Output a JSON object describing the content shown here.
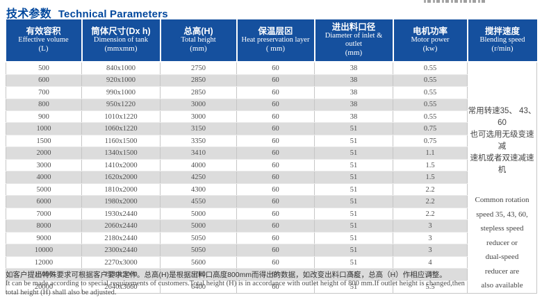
{
  "page": {
    "title_zh": "技术参数",
    "title_en": "Technical Parameters"
  },
  "colors": {
    "header_bg": "#15509e",
    "title_text": "#00479d",
    "row_stripe": "#dcdcdc",
    "body_text": "#4d4d4d"
  },
  "table": {
    "columns": [
      {
        "zh": "有效容积",
        "en": "Effective volume",
        "unit": "(L)"
      },
      {
        "zh": "筒体尺寸(Dx h)",
        "en": "Dimension of tank",
        "unit": "(mmxmm)"
      },
      {
        "zh": "总高(H)",
        "en": "Total height",
        "unit": "(mm)"
      },
      {
        "zh": "保温层⊠",
        "en": "Heat preservation layer",
        "unit": "( mm)"
      },
      {
        "zh": "进出料口径",
        "en": "Diameter of inlet & outlet",
        "unit": "(mm)"
      },
      {
        "zh": "电机功率",
        "en": "Motor power",
        "unit": "(kw)"
      },
      {
        "zh": "搅拌速度",
        "en": "Blending speed",
        "unit": "(r/min)"
      }
    ],
    "rows": [
      [
        "500",
        "840x1000",
        "2750",
        "60",
        "38",
        "0.55"
      ],
      [
        "600",
        "920x1000",
        "2850",
        "60",
        "38",
        "0.55"
      ],
      [
        "700",
        "990x1000",
        "2850",
        "60",
        "38",
        "0.55"
      ],
      [
        "800",
        "950x1220",
        "3000",
        "60",
        "38",
        "0.55"
      ],
      [
        "900",
        "1010x1220",
        "3000",
        "60",
        "38",
        "0.55"
      ],
      [
        "1000",
        "1060x1220",
        "3150",
        "60",
        "51",
        "0.75"
      ],
      [
        "1500",
        "1160x1500",
        "3350",
        "60",
        "51",
        "0.75"
      ],
      [
        "2000",
        "1340x1500",
        "3410",
        "60",
        "51",
        "1.1"
      ],
      [
        "3000",
        "1410x2000",
        "4000",
        "60",
        "51",
        "1.5"
      ],
      [
        "4000",
        "1620x2000",
        "4250",
        "60",
        "51",
        "1.5"
      ],
      [
        "5000",
        "1810x2000",
        "4300",
        "60",
        "51",
        "2.2"
      ],
      [
        "6000",
        "1980x2000",
        "4550",
        "60",
        "51",
        "2.2"
      ],
      [
        "7000",
        "1930x2440",
        "5000",
        "60",
        "51",
        "2.2"
      ],
      [
        "8000",
        "2060x2440",
        "5000",
        "60",
        "51",
        "3"
      ],
      [
        "9000",
        "2180x2440",
        "5050",
        "60",
        "51",
        "3"
      ],
      [
        "10000",
        "2300x2440",
        "5050",
        "60",
        "51",
        "3"
      ],
      [
        "12000",
        "2270x3000",
        "5600",
        "60",
        "51",
        "4"
      ],
      [
        "15000",
        "2530x3000",
        "5700",
        "60",
        "51",
        "4"
      ],
      [
        "20000",
        "2640x3660",
        "6400",
        "60",
        "51",
        "5.5"
      ]
    ],
    "blending_speed_note": {
      "zh_lines": [
        "常用转速35、 43、 60",
        "也可选用无级变速减",
        "速机或者双速减速机"
      ],
      "en_lines": [
        "Common rotation",
        "speed 35, 43, 60,",
        "stepless speed",
        "reducer or",
        "dual-speed",
        "reducer are",
        "also available"
      ]
    }
  },
  "footnote": {
    "zh": "如客户提出特殊要求可根据客户要求定作。总高(H)是根据出料口高度800mm而得出的数据，如改变出料口高度，总高（H）作相应调整。",
    "en_line1": "It can be made according to special requirements of customers.Total height (H) is in accordance with outlet height of 800 mm.If outlet height is changed,then",
    "en_line2": "total height (H) shall also be adjusted."
  }
}
